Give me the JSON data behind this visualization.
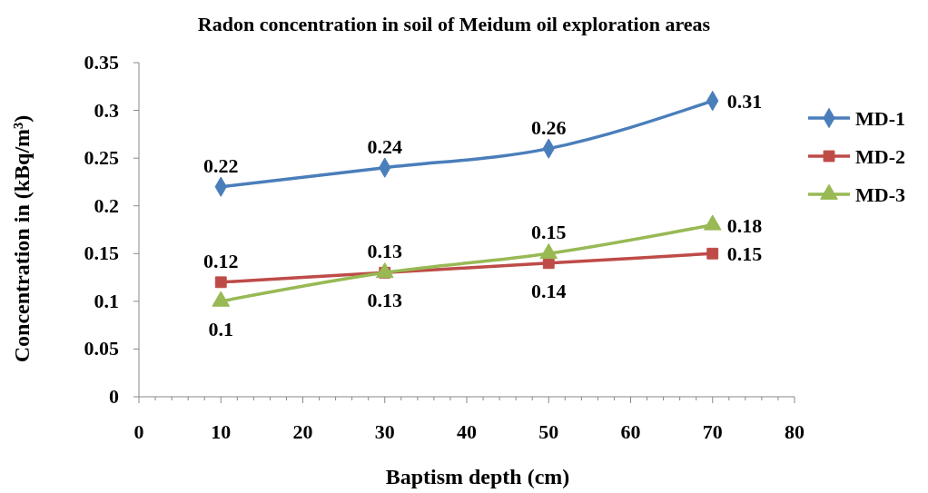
{
  "chart_data": {
    "type": "line",
    "title": "Radon concentration in soil of Meidum oil exploration areas",
    "xlabel": "Baptism depth (cm)",
    "ylabel": "Concentration in (kBq/m³)",
    "x": [
      10,
      30,
      50,
      70
    ],
    "series": [
      {
        "name": "MD-1",
        "color": "#4a7ebb",
        "marker": "diamond",
        "values": [
          0.22,
          0.24,
          0.26,
          0.31
        ]
      },
      {
        "name": "MD-2",
        "color": "#be4b48",
        "marker": "square",
        "values": [
          0.12,
          0.13,
          0.14,
          0.15
        ]
      },
      {
        "name": "MD-3",
        "color": "#98b954",
        "marker": "triangle",
        "values": [
          0.1,
          0.13,
          0.15,
          0.18
        ]
      }
    ],
    "xlim": [
      0,
      80
    ],
    "xticks": [
      0,
      10,
      20,
      30,
      40,
      50,
      60,
      70,
      80
    ],
    "ylim": [
      0,
      0.35
    ],
    "yticks": [
      0,
      0.05,
      0.1,
      0.15,
      0.2,
      0.25,
      0.3,
      0.35
    ],
    "grid": false,
    "legend": "right",
    "data_labels": true,
    "line_style": "solid"
  }
}
